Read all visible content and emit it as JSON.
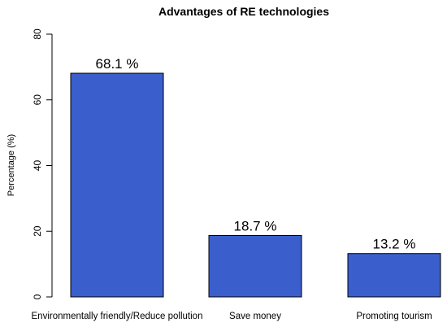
{
  "chart_data": {
    "type": "bar",
    "title": "Advantages of RE technologies",
    "xlabel": "",
    "ylabel": "Percentage (%)",
    "ylim": [
      0,
      80
    ],
    "yticks": [
      0,
      20,
      40,
      60,
      80
    ],
    "categories": [
      "Environmentally friendly/Reduce pollution",
      "Save money",
      "Promoting tourism"
    ],
    "values": [
      68.1,
      18.7,
      13.2
    ],
    "data_labels": [
      "68.1 %",
      "18.7 %",
      "13.2 %"
    ],
    "bar_color": "#3a5fcd",
    "grid": false,
    "legend": "none"
  }
}
